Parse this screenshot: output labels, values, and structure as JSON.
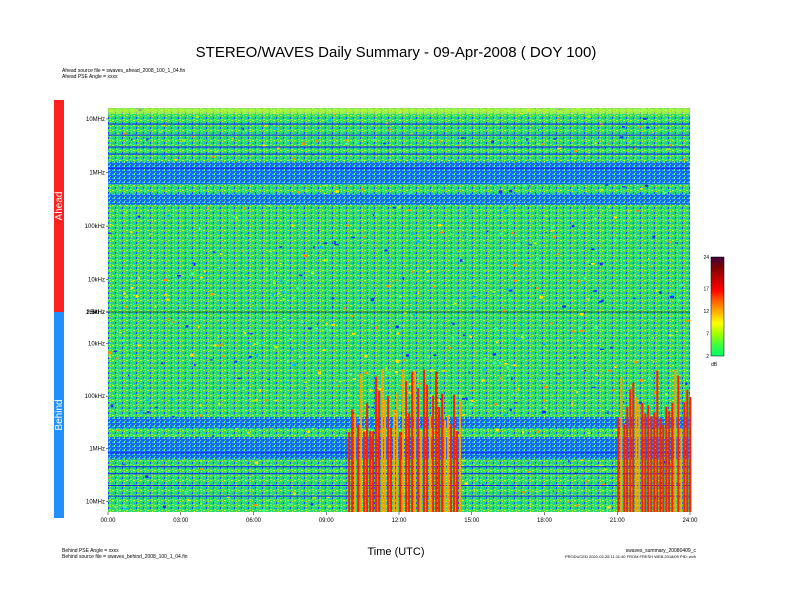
{
  "chart_data": {
    "type": "heatmap",
    "title": "STEREO/WAVES Daily Summary - 09-Apr-2008 ( DOY 100)",
    "xlabel": "Time (UTC)",
    "x_ticks": [
      "00:00",
      "03:00",
      "06:00",
      "09:00",
      "12:00",
      "15:00",
      "18:00",
      "21:00",
      "24:00"
    ],
    "panels": [
      {
        "name": "Ahead",
        "color": "#ff2020",
        "y_scale": "log",
        "y_ticks": [
          "2.5kHz",
          "10kHz",
          "100kHz",
          "1MHz",
          "10MHz",
          "16MHz"
        ],
        "features": [
          {
            "type": "emission_band",
            "freq": "~300kHz",
            "time_start": 0,
            "time_end": 24,
            "level_db": 2
          },
          {
            "type": "emission_band",
            "freq": "~600kHz-1.5MHz",
            "time_start": 0,
            "time_end": 24,
            "level_db": 2
          }
        ]
      },
      {
        "name": "Behind",
        "color": "#2090ff",
        "y_scale": "log",
        "y_ticks": [
          "16MHz",
          "10MHz",
          "1MHz",
          "100kHz",
          "10kHz",
          "2.5kHz"
        ],
        "features": [
          {
            "type": "emission",
            "freq": "2.5-30kHz",
            "time_start": 9.9,
            "time_end": 14.5,
            "level_db": 20
          },
          {
            "type": "emission",
            "freq": "2.5-30kHz",
            "time_start": 21.0,
            "time_end": 24.0,
            "level_db": 22
          }
        ]
      }
    ],
    "colorbar": {
      "label": "dB",
      "ticks": [
        2,
        7,
        12,
        17,
        24
      ],
      "range": [
        2,
        24
      ],
      "colors": [
        "#00ff66",
        "#40ff40",
        "#a0ff00",
        "#ffff00",
        "#ffb000",
        "#ff6000",
        "#ff0000",
        "#c00000",
        "#800000",
        "#400040"
      ]
    }
  },
  "header": {
    "ahead_file": "Ahead source file = swaves_ahead_2008_100_1_04.fin",
    "ahead_angle": "Ahead PSE Angle = xxxx"
  },
  "footer": {
    "behind_angle": "Behind PSE Angle = xxxx",
    "behind_file": "Behind source file = swaves_behind_2008_100_1_04.fin",
    "summary_file": "swaves_summary_20080409_c",
    "produced": "PRODUCED 2020-02-28 11:11:40 FROM FRESH WEB.2018/09 PID: wvh"
  },
  "colors": {
    "background": "#0010ff",
    "base": "#20e080",
    "hot": "#ff2000"
  }
}
